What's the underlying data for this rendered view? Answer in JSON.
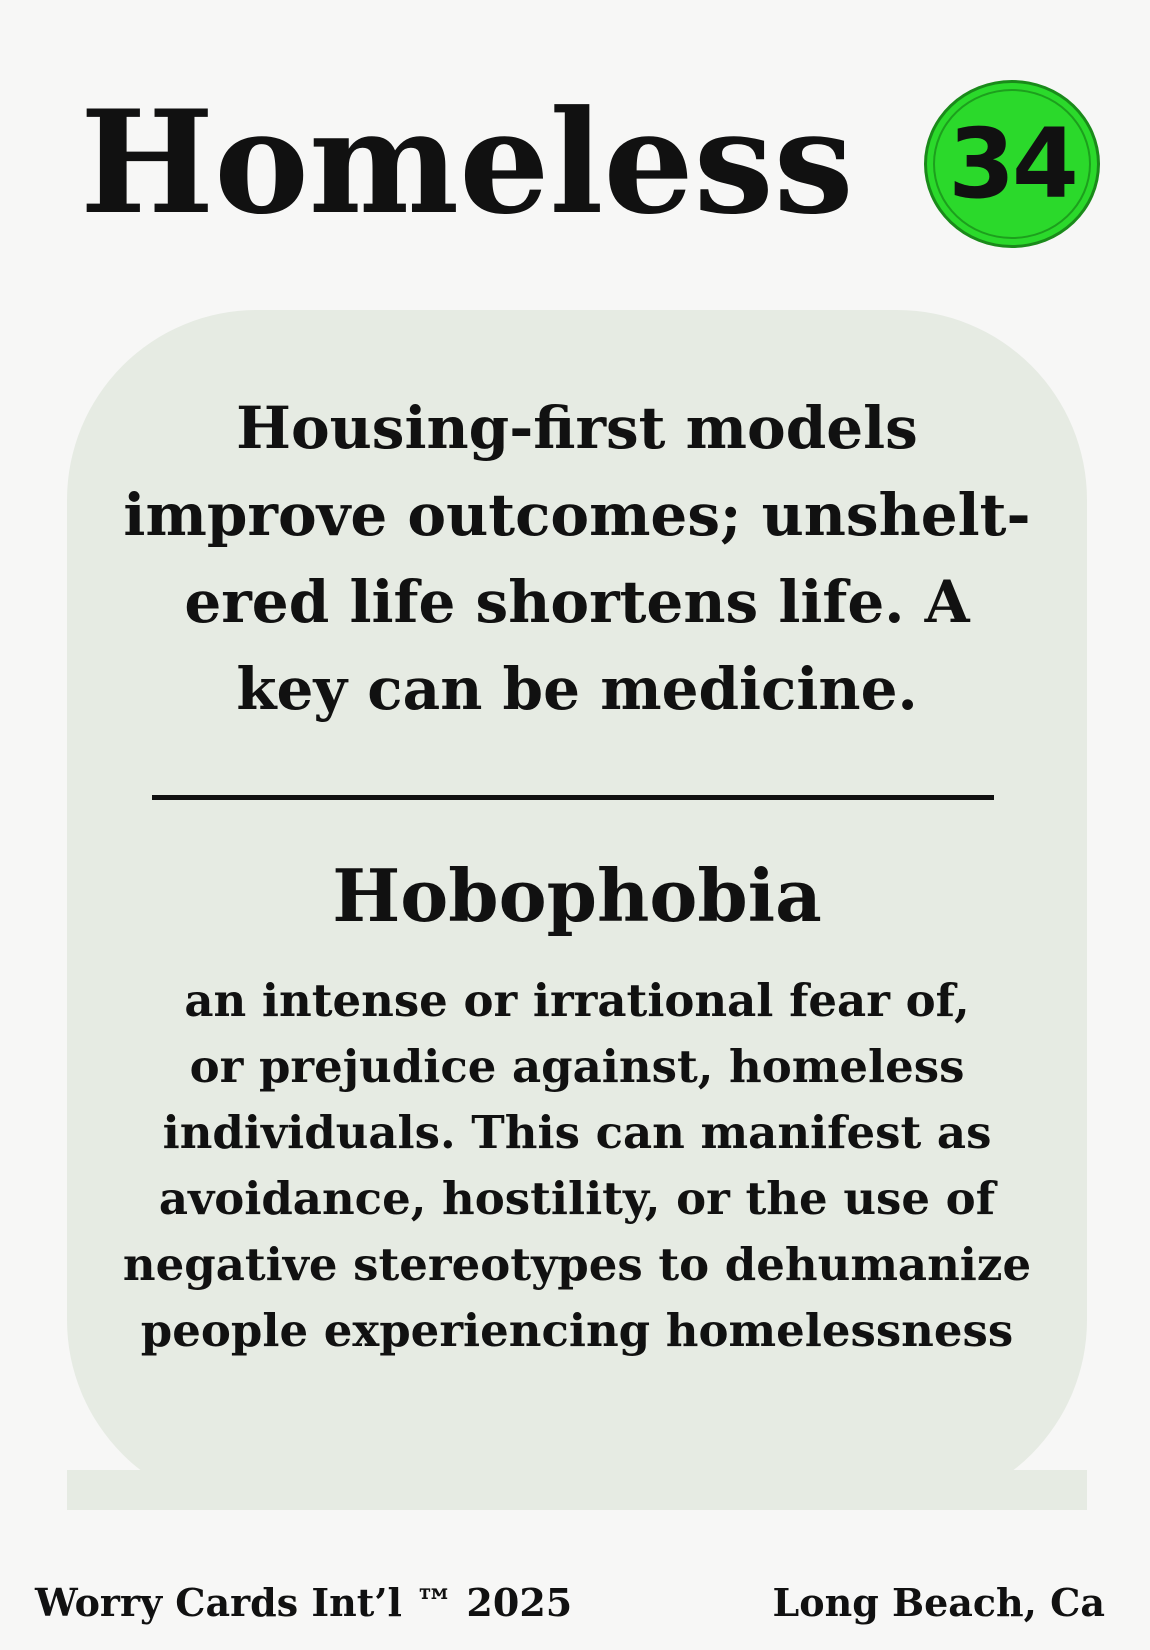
{
  "card": {
    "title": "Homeless",
    "number": "34",
    "badge_color": "#2bd92b",
    "panel_color": "#e6ebe3"
  },
  "fact": {
    "lines": [
      "Housing-first models",
      "improve outcomes; unshelt-",
      "ered life shortens life. A",
      "key can be medicine."
    ]
  },
  "term": {
    "word": "Hobophobia",
    "definition_lines": [
      "an intense or irrational fear of,",
      "or prejudice against, homeless",
      "individuals. This can manifest as",
      "avoidance, hostility, or the use of",
      "negative stereotypes to dehumanize",
      "people experiencing homelessness"
    ]
  },
  "footer": {
    "left": "Worry Cards Int’l ™ 2025",
    "right": "Long Beach, Ca"
  }
}
